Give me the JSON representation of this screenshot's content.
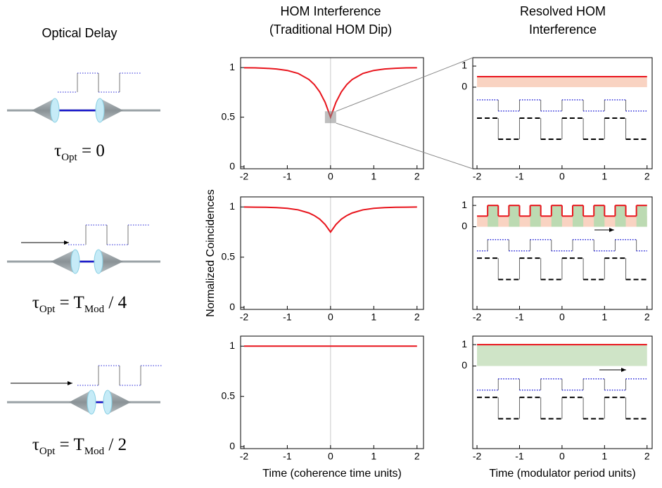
{
  "columns": [
    {
      "title_lines": [
        "Optical Delay"
      ]
    },
    {
      "title_lines": [
        "HOM Interference",
        "(Traditional HOM Dip)"
      ]
    },
    {
      "title_lines": [
        "Resolved HOM",
        "Interference"
      ]
    }
  ],
  "delays": [
    {
      "parts": [
        "τ",
        "Opt",
        " = 0"
      ]
    },
    {
      "parts": [
        "τ",
        "Opt",
        " = T",
        "Mod",
        " / 4"
      ]
    },
    {
      "parts": [
        "τ",
        "Opt",
        " = T",
        "Mod",
        " / 2"
      ]
    }
  ],
  "chart_data": [
    {
      "type": "line",
      "xlim": [
        -2.08,
        2.15
      ],
      "ylim": [
        -0.02,
        1.1
      ],
      "xticks": [
        -2,
        -1,
        0,
        1,
        2
      ],
      "yticks": [
        0,
        0.5,
        1
      ],
      "series": [
        {
          "color": "#e8141c",
          "x": [
            -2,
            -1.75,
            -1.5,
            -1.25,
            -1,
            -0.75,
            -0.5,
            -0.375,
            -0.25,
            -0.125,
            0,
            0.125,
            0.25,
            0.375,
            0.5,
            0.75,
            1,
            1.25,
            1.5,
            1.75,
            2
          ],
          "values": [
            0.998,
            0.997,
            0.993,
            0.986,
            0.971,
            0.941,
            0.88,
            0.829,
            0.755,
            0.65,
            0.5,
            0.65,
            0.755,
            0.829,
            0.88,
            0.941,
            0.971,
            0.986,
            0.993,
            0.997,
            0.998
          ]
        }
      ]
    },
    {
      "type": "line",
      "ylabel": "Normalized Coincidences",
      "xlim": [
        -2.08,
        2.15
      ],
      "ylim": [
        -0.02,
        1.1
      ],
      "xticks": [
        -2,
        -1,
        0,
        1,
        2
      ],
      "yticks": [
        0,
        0.5,
        1
      ],
      "series": [
        {
          "color": "#e8141c",
          "x": [
            -2,
            -1.75,
            -1.5,
            -1.25,
            -1,
            -0.75,
            -0.5,
            -0.375,
            -0.25,
            -0.125,
            0,
            0.125,
            0.25,
            0.375,
            0.5,
            0.75,
            1,
            1.25,
            1.5,
            1.75,
            2
          ],
          "values": [
            0.999,
            0.998,
            0.997,
            0.993,
            0.986,
            0.971,
            0.94,
            0.914,
            0.878,
            0.825,
            0.75,
            0.825,
            0.878,
            0.914,
            0.94,
            0.971,
            0.986,
            0.993,
            0.997,
            0.998,
            0.999
          ]
        }
      ]
    },
    {
      "type": "line",
      "xlabel": "Time (coherence time units)",
      "xlim": [
        -2.08,
        2.15
      ],
      "ylim": [
        -0.02,
        1.1
      ],
      "xticks": [
        -2,
        -1,
        0,
        1,
        2
      ],
      "yticks": [
        0,
        0.5,
        1
      ],
      "series": [
        {
          "color": "#e8141c",
          "x": [
            -2,
            2
          ],
          "values": [
            1,
            1
          ]
        }
      ]
    },
    {
      "type": "step",
      "xlim": [
        -2.1,
        2.12
      ],
      "ylim": [
        -3.87,
        1.4
      ],
      "xticks": [
        -2,
        -1,
        0,
        1,
        2
      ],
      "yticks": [
        0,
        1
      ],
      "bands": [
        {
          "color": "#f9d3c2",
          "edges": [
            -2,
            2
          ],
          "values": [
            0.5
          ]
        }
      ],
      "series": [
        {
          "color": "#e8141c",
          "style": "solid",
          "edges": [
            -2,
            2
          ],
          "values": [
            0.5
          ]
        },
        {
          "color": "#2424d8",
          "style": "dotted",
          "edges": [
            -2,
            -1.5,
            -1,
            -0.5,
            0,
            0.5,
            1,
            1.5,
            2
          ],
          "values": [
            -0.6,
            -1.13,
            -0.6,
            -1.13,
            -0.6,
            -1.13,
            -0.6,
            -1.13
          ]
        },
        {
          "color": "#000000",
          "style": "dashed",
          "edges": [
            -2,
            -1.5,
            -1,
            -0.5,
            0,
            0.5,
            1,
            1.5,
            2
          ],
          "values": [
            -1.47,
            -2.47,
            -1.47,
            -2.47,
            -1.47,
            -2.47,
            -1.47,
            -2.47
          ]
        }
      ]
    },
    {
      "type": "step",
      "xlim": [
        -2.1,
        2.12
      ],
      "ylim": [
        -3.87,
        1.4
      ],
      "xticks": [
        -2,
        -1,
        0,
        1,
        2
      ],
      "yticks": [
        0,
        1
      ],
      "bands": [
        {
          "color": "#f9d3c2",
          "edges": [
            -2,
            2
          ],
          "values": [
            0.5
          ]
        },
        {
          "color": "#bcdab2",
          "edges": [
            -2,
            -1.75,
            -1.5,
            -1.25,
            -1,
            -0.75,
            -0.5,
            -0.25,
            0,
            0.25,
            0.5,
            0.75,
            1,
            1.25,
            1.5,
            1.75,
            2
          ],
          "values": [
            0,
            1,
            0,
            1,
            0,
            1,
            0,
            1,
            0,
            1,
            0,
            1,
            0,
            1,
            0,
            1
          ]
        }
      ],
      "series": [
        {
          "color": "#e8141c",
          "style": "solid",
          "edges": [
            -2,
            -1.75,
            -1.5,
            -1.25,
            -1,
            -0.75,
            -0.5,
            -0.25,
            0,
            0.25,
            0.5,
            0.75,
            1,
            1.25,
            1.5,
            1.75,
            2
          ],
          "values": [
            0.5,
            1,
            0.5,
            1,
            0.5,
            1,
            0.5,
            1,
            0.5,
            1,
            0.5,
            1,
            0.5,
            1,
            0.5,
            1
          ]
        },
        {
          "color": "#2424d8",
          "style": "dotted",
          "edges": [
            -2,
            -1.75,
            -1.25,
            -0.75,
            -0.25,
            0.25,
            0.75,
            1.25,
            1.75,
            2
          ],
          "values": [
            -1.13,
            -0.6,
            -1.13,
            -0.6,
            -1.13,
            -0.6,
            -1.13,
            -0.6,
            -1.13
          ]
        },
        {
          "color": "#000000",
          "style": "dashed",
          "edges": [
            -2,
            -1.5,
            -1,
            -0.5,
            0,
            0.5,
            1,
            1.5,
            2
          ],
          "values": [
            -1.47,
            -2.47,
            -1.47,
            -2.47,
            -1.47,
            -2.47,
            -1.47,
            -2.47
          ]
        }
      ]
    },
    {
      "type": "step",
      "xlabel": "Time (modulator period units)",
      "xlim": [
        -2.1,
        2.12
      ],
      "ylim": [
        -3.87,
        1.4
      ],
      "xticks": [
        -2,
        -1,
        0,
        1,
        2
      ],
      "yticks": [
        0,
        1
      ],
      "bands": [
        {
          "color": "#cfe4c7",
          "edges": [
            -2,
            2
          ],
          "values": [
            1
          ]
        }
      ],
      "series": [
        {
          "color": "#e8141c",
          "style": "solid",
          "edges": [
            -2,
            2
          ],
          "values": [
            1
          ]
        },
        {
          "color": "#2424d8",
          "style": "dotted",
          "edges": [
            -2,
            -1.5,
            -1,
            -0.5,
            0,
            0.5,
            1,
            1.5,
            2
          ],
          "values": [
            -1.13,
            -0.6,
            -1.13,
            -0.6,
            -1.13,
            -0.6,
            -1.13,
            -0.6
          ]
        },
        {
          "color": "#000000",
          "style": "dashed",
          "edges": [
            -2,
            -1.5,
            -1,
            -0.5,
            0,
            0.5,
            1,
            1.5,
            2
          ],
          "values": [
            -1.47,
            -2.47,
            -1.47,
            -2.47,
            -1.47,
            -2.47,
            -1.47,
            -2.47
          ]
        }
      ]
    }
  ]
}
